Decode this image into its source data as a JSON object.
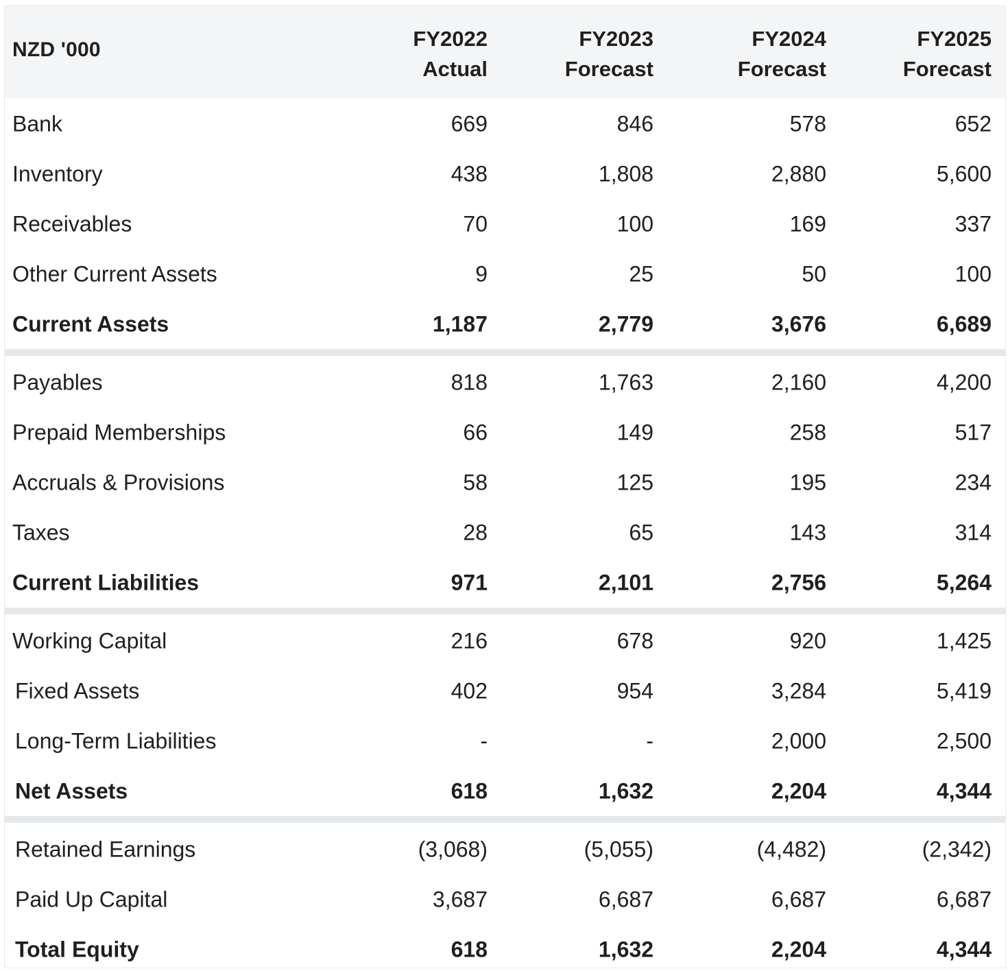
{
  "table": {
    "corner_label": "NZD '000",
    "columns": [
      {
        "line1": "FY2022",
        "line2": "Actual"
      },
      {
        "line1": "FY2023",
        "line2": "Forecast"
      },
      {
        "line1": "FY2024",
        "line2": "Forecast"
      },
      {
        "line1": "FY2025",
        "line2": "Forecast"
      }
    ],
    "sections": [
      {
        "rows": [
          {
            "label": "Bank",
            "values": [
              "669",
              "846",
              "578",
              "652"
            ]
          },
          {
            "label": "Inventory",
            "values": [
              "438",
              "1,808",
              "2,880",
              "5,600"
            ]
          },
          {
            "label": "Receivables",
            "values": [
              "70",
              "100",
              "169",
              "337"
            ]
          },
          {
            "label": "Other Current Assets",
            "values": [
              "9",
              "25",
              "50",
              "100"
            ]
          },
          {
            "label": "Current Assets",
            "values": [
              "1,187",
              "2,779",
              "3,676",
              "6,689"
            ]
          }
        ]
      },
      {
        "rows": [
          {
            "label": "Payables",
            "values": [
              "818",
              "1,763",
              "2,160",
              "4,200"
            ]
          },
          {
            "label": "Prepaid Memberships",
            "values": [
              "66",
              "149",
              "258",
              "517"
            ]
          },
          {
            "label": "Accruals & Provisions",
            "values": [
              "58",
              "125",
              "195",
              "234"
            ]
          },
          {
            "label": "Taxes",
            "values": [
              "28",
              "65",
              "143",
              "314"
            ]
          },
          {
            "label": "Current Liabilities",
            "values": [
              "971",
              "2,101",
              "2,756",
              "5,264"
            ]
          }
        ]
      },
      {
        "rows": [
          {
            "label": "Working Capital",
            "values": [
              "216",
              "678",
              "920",
              "1,425"
            ]
          },
          {
            "label": "Fixed Assets",
            "values": [
              "402",
              "954",
              "3,284",
              "5,419"
            ]
          },
          {
            "label": "Long-Term Liabilities",
            "values": [
              "-",
              "-",
              "2,000",
              "2,500"
            ]
          },
          {
            "label": "Net Assets",
            "values": [
              "618",
              "1,632",
              "2,204",
              "4,344"
            ]
          }
        ]
      },
      {
        "rows": [
          {
            "label": "Retained Earnings",
            "values": [
              "(3,068)",
              "(5,055)",
              "(4,482)",
              "(2,342)"
            ]
          },
          {
            "label": "Paid Up Capital",
            "values": [
              "3,687",
              "6,687",
              "6,687",
              "6,687"
            ]
          },
          {
            "label": "Total Equity",
            "values": [
              "618",
              "1,632",
              "2,204",
              "4,344"
            ]
          }
        ]
      }
    ]
  },
  "colors": {
    "header_bg": "#f3f5f7",
    "separator": "#e4e8eb",
    "text": "#1f1f1f"
  }
}
